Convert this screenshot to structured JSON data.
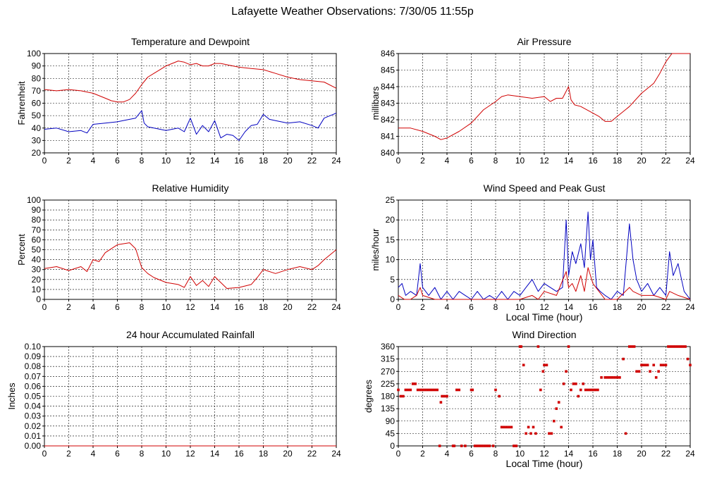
{
  "page": {
    "title": "Lafayette Weather Observations: 7/30/05 11:55p"
  },
  "colors": {
    "red": "#d00000",
    "blue": "#0000c0",
    "grid": "#000000",
    "background": "#ffffff"
  },
  "chart_data": [
    {
      "id": "temp",
      "type": "line",
      "title": "Temperature and Dewpoint",
      "xlabel": "",
      "ylabel": "Fahrenheit",
      "xlim": [
        0,
        24
      ],
      "ylim": [
        20,
        100
      ],
      "xticks": [
        0,
        2,
        4,
        6,
        8,
        10,
        12,
        14,
        16,
        18,
        20,
        22,
        24
      ],
      "yticks": [
        20,
        30,
        40,
        50,
        60,
        70,
        80,
        90,
        100
      ],
      "grid": true,
      "series": [
        {
          "color": "red",
          "x": [
            0,
            1,
            2,
            3,
            4,
            5,
            5.5,
            6,
            6.5,
            7,
            7.5,
            8,
            8.5,
            9,
            9.5,
            10,
            10.5,
            11,
            11.5,
            12,
            12.5,
            13,
            13.5,
            14,
            14.5,
            15,
            16,
            17,
            18,
            19,
            20,
            21,
            22,
            23,
            24
          ],
          "y": [
            71,
            70,
            71,
            70,
            68,
            64,
            62,
            61,
            61,
            63,
            68,
            75,
            81,
            84,
            87,
            90,
            92,
            94,
            93,
            91,
            92,
            90,
            90,
            92,
            92,
            91,
            89,
            88,
            87,
            84,
            81,
            79,
            78,
            77,
            72
          ]
        },
        {
          "color": "blue",
          "x": [
            0,
            1,
            2,
            3,
            3.5,
            4,
            5,
            6,
            7,
            7.5,
            8,
            8.2,
            8.5,
            9,
            10,
            11,
            11.5,
            12,
            12.5,
            13,
            13.5,
            14,
            14.5,
            15,
            15.5,
            16,
            16.5,
            17,
            17.5,
            18,
            18.5,
            19,
            20,
            21,
            22,
            22.5,
            23,
            24
          ],
          "y": [
            39,
            40,
            37,
            38,
            36,
            43,
            44,
            45,
            47,
            48,
            54,
            44,
            41,
            40,
            38,
            40,
            37,
            48,
            35,
            42,
            37,
            46,
            32,
            35,
            34,
            30,
            37,
            42,
            43,
            51,
            47,
            46,
            44,
            45,
            42,
            40,
            48,
            52
          ]
        }
      ]
    },
    {
      "id": "pressure",
      "type": "line",
      "title": "Air Pressure",
      "xlabel": "",
      "ylabel": "millibars",
      "xlim": [
        0,
        24
      ],
      "ylim": [
        840,
        846
      ],
      "xticks": [
        0,
        2,
        4,
        6,
        8,
        10,
        12,
        14,
        16,
        18,
        20,
        22,
        24
      ],
      "yticks": [
        840,
        841,
        842,
        843,
        844,
        845,
        846
      ],
      "grid": true,
      "series": [
        {
          "color": "red",
          "x": [
            0,
            1,
            2,
            3,
            3.5,
            4,
            5,
            6,
            7,
            8,
            8.5,
            9,
            10,
            11,
            12,
            12.5,
            13,
            13.5,
            14,
            14.2,
            14.5,
            15,
            16,
            16.5,
            17,
            17.5,
            18,
            19,
            20,
            20.5,
            21,
            21.5,
            22,
            22.5,
            23,
            24
          ],
          "y": [
            841.5,
            841.5,
            841.3,
            841.0,
            840.8,
            840.9,
            841.3,
            841.8,
            842.6,
            843.1,
            843.4,
            843.5,
            843.4,
            843.3,
            843.4,
            843.1,
            843.3,
            843.3,
            844.0,
            843.2,
            842.9,
            842.8,
            842.4,
            842.2,
            841.9,
            841.9,
            842.2,
            842.8,
            843.6,
            843.9,
            844.2,
            844.8,
            845.5,
            846.0,
            846.0,
            846.0
          ]
        }
      ]
    },
    {
      "id": "humidity",
      "type": "line",
      "title": "Relative Humidity",
      "xlabel": "",
      "ylabel": "Percent",
      "xlim": [
        0,
        24
      ],
      "ylim": [
        0,
        100
      ],
      "xticks": [
        0,
        2,
        4,
        6,
        8,
        10,
        12,
        14,
        16,
        18,
        20,
        22,
        24
      ],
      "yticks": [
        0,
        10,
        20,
        30,
        40,
        50,
        60,
        70,
        80,
        90,
        100
      ],
      "grid": true,
      "series": [
        {
          "color": "red",
          "x": [
            0,
            1,
            2,
            3,
            3.5,
            4,
            4.5,
            5,
            6,
            7,
            7.5,
            8,
            8.5,
            9,
            10,
            11,
            11.5,
            12,
            12.5,
            13,
            13.5,
            14,
            15,
            16,
            17,
            17.5,
            18,
            19,
            20,
            21,
            22,
            22.5,
            23,
            24
          ],
          "y": [
            31,
            33,
            29,
            33,
            28,
            40,
            38,
            47,
            55,
            57,
            51,
            32,
            26,
            22,
            17,
            15,
            12,
            23,
            14,
            19,
            13,
            23,
            11,
            12,
            15,
            22,
            30,
            26,
            30,
            33,
            30,
            34,
            40,
            50
          ]
        }
      ]
    },
    {
      "id": "wind",
      "type": "line",
      "title": "Wind Speed and Peak Gust",
      "xlabel": "Local Time (hour)",
      "ylabel": "miles/hour",
      "xlim": [
        0,
        24
      ],
      "ylim": [
        0,
        25
      ],
      "xticks": [
        0,
        2,
        4,
        6,
        8,
        10,
        12,
        14,
        16,
        18,
        20,
        22,
        24
      ],
      "yticks": [
        0,
        5,
        10,
        15,
        20,
        25
      ],
      "grid": true,
      "series": [
        {
          "color": "blue",
          "x": [
            0,
            0.3,
            0.6,
            1,
            1.5,
            1.8,
            2,
            2.5,
            3,
            3.5,
            4,
            4.5,
            5,
            5.5,
            6,
            6.5,
            7,
            7.5,
            8,
            8.5,
            9,
            9.5,
            10,
            10.5,
            11,
            11.5,
            12,
            12.5,
            13,
            13.5,
            13.8,
            14,
            14.3,
            14.6,
            15,
            15.3,
            15.6,
            15.8,
            16,
            16.3,
            16.6,
            17,
            17.5,
            18,
            18.5,
            19,
            19.3,
            19.6,
            20,
            20.5,
            21,
            21.5,
            22,
            22.3,
            22.6,
            23,
            23.5,
            24
          ],
          "y": [
            3,
            4,
            1,
            2,
            1,
            9,
            3,
            1,
            3,
            0,
            2,
            0,
            2,
            1,
            0,
            2,
            0,
            1,
            0,
            2,
            0,
            2,
            1,
            3,
            5,
            2,
            4,
            3,
            2,
            3,
            20,
            6,
            12,
            9,
            14,
            8,
            22,
            10,
            15,
            3,
            2,
            1,
            0,
            2,
            1,
            19,
            10,
            5,
            2,
            4,
            1,
            3,
            1,
            12,
            6,
            9,
            2,
            0
          ]
        },
        {
          "color": "red",
          "x": [
            0,
            0.5,
            1,
            1.5,
            1.8,
            2,
            3,
            4,
            5,
            6,
            7,
            8,
            9,
            10,
            11,
            11.5,
            12,
            13,
            13.8,
            14,
            14.3,
            14.6,
            15,
            15.3,
            15.6,
            16,
            16.5,
            17,
            18,
            19,
            19.3,
            20,
            21,
            22,
            22.3,
            23,
            24
          ],
          "y": [
            1,
            0,
            0,
            1,
            3,
            1,
            0,
            0,
            0,
            0,
            0,
            0,
            0,
            0,
            1,
            0,
            2,
            1,
            7,
            3,
            4,
            2,
            6,
            2,
            8,
            4,
            2,
            0,
            0,
            3,
            2,
            1,
            1,
            0,
            2,
            1,
            0
          ]
        }
      ]
    },
    {
      "id": "rain",
      "type": "line",
      "title": "24 hour Accumulated Rainfall",
      "xlabel": "",
      "ylabel": "Inches",
      "xlim": [
        0,
        24
      ],
      "ylim": [
        0,
        0.1
      ],
      "xticks": [
        0,
        2,
        4,
        6,
        8,
        10,
        12,
        14,
        16,
        18,
        20,
        22,
        24
      ],
      "yticks": [
        0.0,
        0.01,
        0.02,
        0.03,
        0.04,
        0.05,
        0.06,
        0.07,
        0.08,
        0.09,
        0.1
      ],
      "grid": true,
      "series": [
        {
          "color": "red",
          "x": [
            0,
            24
          ],
          "y": [
            0,
            0
          ]
        }
      ]
    },
    {
      "id": "direction",
      "type": "scatter",
      "title": "Wind Direction",
      "xlabel": "Local Time (hour)",
      "ylabel": "degrees",
      "xlim": [
        0,
        24
      ],
      "ylim": [
        0,
        360
      ],
      "xticks": [
        0,
        2,
        4,
        6,
        8,
        10,
        12,
        14,
        16,
        18,
        20,
        22,
        24
      ],
      "yticks": [
        0,
        45,
        90,
        135,
        180,
        225,
        270,
        315,
        360
      ],
      "grid": true,
      "series": [
        {
          "color": "red",
          "x": [
            0,
            0.2,
            0.4,
            0.6,
            0.8,
            1.0,
            1.2,
            1.4,
            1.6,
            1.8,
            2.0,
            2.2,
            2.4,
            2.6,
            2.8,
            3.0,
            3.2,
            3.4,
            3.5,
            3.6,
            3.8,
            4.0,
            4.5,
            4.6,
            4.8,
            5.0,
            5.2,
            5.5,
            6.0,
            6.1,
            6.3,
            6.5,
            6.7,
            6.9,
            7.1,
            7.3,
            7.5,
            7.8,
            8.0,
            8.3,
            8.5,
            8.7,
            8.9,
            9.1,
            9.3,
            9.5,
            9.7,
            10.0,
            10.1,
            10.3,
            10.5,
            10.7,
            10.9,
            11.1,
            11.3,
            11.5,
            11.7,
            11.9,
            12.0,
            12.2,
            12.4,
            12.6,
            12.8,
            13.0,
            13.2,
            13.4,
            13.6,
            13.8,
            14.0,
            14.2,
            14.4,
            14.6,
            14.8,
            15.0,
            15.2,
            15.4,
            15.6,
            15.8,
            16.0,
            16.2,
            16.4,
            16.7,
            17.0,
            17.2,
            17.4,
            17.6,
            17.8,
            18.0,
            18.2,
            18.5,
            18.7,
            19.0,
            19.2,
            19.4,
            19.6,
            19.8,
            20.0,
            20.1,
            20.3,
            20.5,
            20.7,
            21.0,
            21.2,
            21.4,
            21.6,
            21.8,
            22.0,
            22.2,
            22.4,
            22.6,
            22.8,
            23.0,
            23.2,
            23.4,
            23.6,
            23.8,
            24.0
          ],
          "y": [
            203,
            180,
            180,
            203,
            203,
            203,
            225,
            225,
            203,
            203,
            203,
            203,
            203,
            203,
            203,
            203,
            203,
            0,
            158,
            180,
            180,
            180,
            0,
            0,
            203,
            203,
            0,
            0,
            203,
            203,
            0,
            0,
            0,
            0,
            0,
            0,
            0,
            0,
            203,
            180,
            68,
            68,
            68,
            68,
            68,
            0,
            0,
            360,
            360,
            293,
            45,
            68,
            45,
            68,
            45,
            360,
            203,
            270,
            293,
            293,
            45,
            45,
            90,
            135,
            158,
            68,
            225,
            270,
            360,
            203,
            225,
            225,
            180,
            203,
            225,
            203,
            203,
            203,
            203,
            203,
            203,
            248,
            248,
            248,
            248,
            248,
            248,
            248,
            248,
            315,
            45,
            360,
            360,
            360,
            270,
            270,
            293,
            293,
            293,
            293,
            270,
            293,
            248,
            270,
            293,
            293,
            293,
            360,
            360,
            360,
            360,
            360,
            360,
            360,
            360,
            315,
            293
          ]
        }
      ]
    }
  ]
}
